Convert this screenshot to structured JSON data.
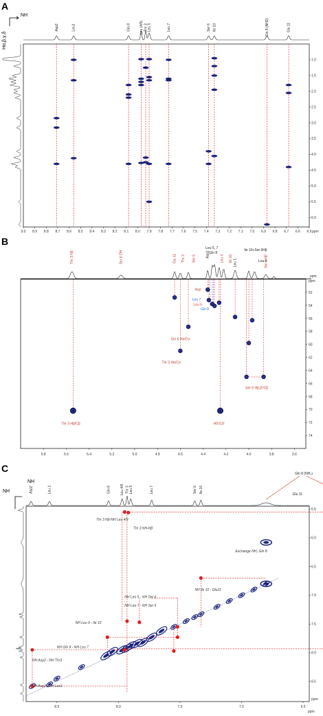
{
  "chart_data": [
    {
      "panel": "A",
      "type": "scatter",
      "xlabel": "ppm",
      "corner_x": "NH",
      "corner_y": "Hα,β,γ,δ",
      "xlim": [
        9.0,
        6.5
      ],
      "ylim": [
        0.5,
        6.3
      ],
      "xticks": [
        "9.0",
        "8.9",
        "8.8",
        "8.7",
        "8.6",
        "8.5",
        "8.4",
        "8.3",
        "8.2",
        "8.1",
        "8.0",
        "7.9",
        "7.8",
        "7.7",
        "7.6",
        "7.5",
        "7.4",
        "7.3",
        "7.2",
        "7.1",
        "7.0",
        "6.9",
        "6.8",
        "6.7",
        "6.6",
        "6.5"
      ],
      "yticks": [
        "1.0",
        "1.5",
        "2.0",
        "2.5",
        "3.0",
        "3.5",
        "4.0",
        "4.5",
        "5.0",
        "5.5",
        "6.0"
      ],
      "columns": [
        {
          "label": "Asp2",
          "x": 8.71,
          "y": [
            2.85,
            3.15,
            4.3
          ]
        },
        {
          "label": "Leu1",
          "x": 8.56,
          "y": [
            1.0,
            1.65,
            4.12
          ]
        },
        {
          "label": "Gln 8",
          "x": 8.08,
          "y": [
            1.8,
            2.1,
            2.2,
            4.3
          ]
        },
        {
          "label": "Leu (4/9)",
          "x": 7.97,
          "y": [
            0.98,
            1.6,
            1.7,
            1.8,
            4.27
          ]
        },
        {
          "label": "Thr 3",
          "x": 7.93,
          "y": [
            1.25,
            4.1,
            4.25
          ]
        },
        {
          "label": "Leu 5",
          "x": 7.9,
          "y": [
            0.98,
            1.55,
            1.65,
            4.3,
            5.5
          ]
        },
        {
          "label": "Leu 7",
          "x": 7.73,
          "y": [
            1.0,
            1.6,
            1.65,
            4.3
          ]
        },
        {
          "label": "Ser 6",
          "x": 7.38,
          "y": [
            3.9,
            4.3
          ]
        },
        {
          "label": "Ile 10",
          "x": 7.33,
          "y": [
            0.95,
            1.2,
            1.5,
            1.95,
            4.05
          ]
        },
        {
          "label": "Gln 8 (NH2)",
          "x": 6.87,
          "y": [
            6.22
          ]
        },
        {
          "label": "Glu 11",
          "x": 6.68,
          "y": [
            1.8,
            2.05,
            4.4
          ]
        }
      ]
    },
    {
      "panel": "B",
      "type": "scatter",
      "xlabel": "",
      "ylabel": "ppm",
      "xlim": [
        6.0,
        3.5
      ],
      "ylim": [
        50,
        76
      ],
      "xticks": [
        "5.8",
        "5.6",
        "5.4",
        "5.2",
        "5.0",
        "4.8",
        "4.6",
        "4.4",
        "4.2",
        "4.0",
        "3.8",
        "3.6"
      ],
      "yticks": [
        "52",
        "54",
        "56",
        "58",
        "60",
        "62",
        "64",
        "66",
        "68",
        "70",
        "72",
        "74"
      ],
      "top_labels": [
        {
          "text": "Thr 3 Hβ",
          "x": 5.55,
          "color": "red"
        },
        {
          "text": "Ser 6 OH",
          "x": 5.12,
          "color": "red"
        },
        {
          "text": "Glu 11",
          "x": 4.65,
          "color": "red"
        },
        {
          "text": "Thr 3",
          "x": 4.6,
          "color": "red"
        },
        {
          "text": "Ser 6",
          "x": 4.53,
          "color": "red"
        },
        {
          "text": "Asp2",
          "x": 4.36,
          "color": "black"
        },
        {
          "text": "Leu 5, 7",
          "x": 4.3,
          "color": "black"
        },
        {
          "text": "Gln 8",
          "x": 4.3,
          "color": "black"
        },
        {
          "text": "Leu 4",
          "x": 4.26,
          "color": "red"
        },
        {
          "text": "Ile 10",
          "x": 4.22,
          "color": "red"
        },
        {
          "text": "Leu 1",
          "x": 4.12,
          "color": "black"
        },
        {
          "text": "Ile 10+Ser 6Hβ",
          "x": 4.0,
          "color": "black"
        },
        {
          "text": "Leu 9",
          "x": 3.95,
          "color": "black"
        },
        {
          "text": "Ser 6 Hβ",
          "x": 3.85,
          "color": "red"
        }
      ],
      "points": [
        {
          "x": 4.65,
          "y": 52.8
        },
        {
          "x": 4.53,
          "y": 57.3
        },
        {
          "x": 4.6,
          "y": 61.0
        },
        {
          "x": 4.36,
          "y": 51.6
        },
        {
          "x": 4.35,
          "y": 53.2
        },
        {
          "x": 4.32,
          "y": 53.8
        },
        {
          "x": 4.3,
          "y": 54.1
        },
        {
          "x": 4.26,
          "y": 53.6
        },
        {
          "x": 4.12,
          "y": 55.8
        },
        {
          "x": 3.97,
          "y": 56.3
        },
        {
          "x": 4.0,
          "y": 59.8
        },
        {
          "x": 4.02,
          "y": 65.0
        },
        {
          "x": 3.87,
          "y": 65.0
        },
        {
          "x": 5.54,
          "y": 70.2
        },
        {
          "x": 4.25,
          "y": 70.2
        }
      ],
      "annotations": [
        {
          "text": "Asp",
          "color": "red",
          "x": 4.42,
          "y": 51.6
        },
        {
          "text": "Leu 7",
          "color": "blue",
          "x": 4.42,
          "y": 53.1
        },
        {
          "text": "Leu 5",
          "color": "red",
          "x": 4.41,
          "y": 53.9
        },
        {
          "text": "Gln 8",
          "color": "blue",
          "x": 4.35,
          "y": 54.6
        },
        {
          "text": "Ser 6 Hα/Cα",
          "color": "red",
          "x": 4.6,
          "y": 59.2
        },
        {
          "text": "Thr 3 Hα/Cα",
          "color": "red",
          "x": 4.68,
          "y": 62.8
        },
        {
          "text": "Ser 6 Hβ,β'/Cβ",
          "color": "red",
          "x": 3.93,
          "y": 66.7
        },
        {
          "text": "Thr 3 Hβ/Cβ",
          "color": "red",
          "x": 5.56,
          "y": 72.2
        },
        {
          "text": "Hδ'/Cδ'",
          "color": "red",
          "x": 4.26,
          "y": 72.2
        }
      ]
    },
    {
      "panel": "C",
      "type": "scatter",
      "xlabel": "ppm",
      "ylabel": "ppm",
      "corner_x": "NH",
      "corner_y": "NH",
      "xlim": [
        8.75,
        6.45
      ],
      "ylim": [
        5.45,
        8.85
      ],
      "xticks": [
        "8.5",
        "8.0",
        "7.5",
        "7.0",
        "6.5"
      ],
      "yticks": [
        "5.5",
        "6.0",
        "6.5",
        "7.0",
        "7.5",
        "8.0",
        "8.5"
      ],
      "top_labels": [
        {
          "text": "Asp2",
          "x": 8.71
        },
        {
          "text": "Leu 1",
          "x": 8.56
        },
        {
          "text": "Gln 8",
          "x": 8.08
        },
        {
          "text": "Leu 4/9",
          "x": 7.97
        },
        {
          "text": "Thr 3",
          "x": 7.93
        },
        {
          "text": "Leu 5",
          "x": 7.9
        },
        {
          "text": "Leu 7",
          "x": 7.73
        },
        {
          "text": "Ser 6",
          "x": 7.38
        },
        {
          "text": "Ile 10",
          "x": 7.33
        },
        {
          "text": "Glu 11",
          "x": 6.68
        },
        {
          "text": "Gln 8 (NH2)",
          "x": 6.87
        },
        {
          "text": "Thr 3 Hβ",
          "x": 5.52
        }
      ],
      "annotations": [
        {
          "text": "Thr 3 Hβ-NH Leu 4/9",
          "x": 8.18,
          "y": 5.7
        },
        {
          "text": "Thr 3 NH-Hβ",
          "x": 7.88,
          "y": 5.85
        },
        {
          "text": "Exchange NH₂ Gln 8",
          "x": 7.05,
          "y": 6.25
        },
        {
          "text": "NH Leu 5 - NH Ser 6",
          "x": 7.95,
          "y": 7.05
        },
        {
          "text": "NH Ile 10 - Glu11",
          "x": 7.38,
          "y": 6.92
        },
        {
          "text": "NH Leu 7 - NH Ser 6",
          "x": 7.95,
          "y": 7.2
        },
        {
          "text": "NH Leu 9 - Ile 10",
          "x": 8.35,
          "y": 7.5
        },
        {
          "text": "NH Gln 8 - NH Leu 7",
          "x": 8.5,
          "y": 7.92
        },
        {
          "text": "NH Asp2 - NH Thr3",
          "x": 8.7,
          "y": 8.15
        },
        {
          "text": "NH Asp2 - NH Leu1",
          "x": 8.7,
          "y": 8.6
        }
      ],
      "crosspeaks": [
        {
          "x": 7.95,
          "y": 5.55
        },
        {
          "x": 7.92,
          "y": 5.56
        },
        {
          "x": 7.93,
          "y": 7.45
        },
        {
          "x": 7.95,
          "y": 7.95
        },
        {
          "x": 7.83,
          "y": 7.47
        },
        {
          "x": 7.52,
          "y": 7.73
        },
        {
          "x": 7.52,
          "y": 7.55
        },
        {
          "x": 7.55,
          "y": 7.97
        },
        {
          "x": 8.09,
          "y": 7.73
        },
        {
          "x": 8.7,
          "y": 7.95
        },
        {
          "x": 8.7,
          "y": 8.58
        },
        {
          "x": 5.52,
          "y": 7.93
        },
        {
          "x": 5.52,
          "y": 5.52
        },
        {
          "x": 7.33,
          "y": 6.7
        }
      ],
      "blue_peaks": [
        {
          "x": 6.8,
          "y": 6.8
        },
        {
          "x": 6.08,
          "y": 6.08
        },
        {
          "x": 6.08,
          "y": 6.8
        },
        {
          "x": 6.8,
          "y": 6.08
        },
        {
          "x": 5.52,
          "y": 5.52
        }
      ]
    }
  ]
}
